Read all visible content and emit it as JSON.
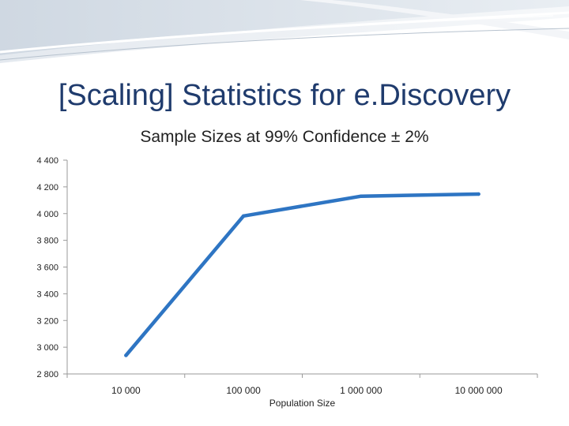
{
  "slide": {
    "title": "[Scaling] Statistics for e.Discovery"
  },
  "chart_data": {
    "type": "line",
    "title": "Sample Sizes at 99% Confidence ± 2%",
    "xlabel": "Population Size",
    "ylabel": "",
    "categories": [
      "10 000",
      "100 000",
      "1 000 000",
      "10 000 000"
    ],
    "x": [
      10000,
      100000,
      1000000,
      10000000
    ],
    "x_scale": "log",
    "series": [
      {
        "values": [
          2939,
          3982,
          4130,
          4146
        ]
      }
    ],
    "ylim": [
      2800,
      4400
    ],
    "yticks": [
      2800,
      3000,
      3200,
      3400,
      3600,
      3800,
      4000,
      4200,
      4400
    ],
    "ytick_labels": [
      "2 800",
      "3 000",
      "3 200",
      "3 400",
      "3 600",
      "3 800",
      "4 000",
      "4 200",
      "4 400"
    ],
    "grid": false,
    "legend": "none",
    "colors": {
      "line": "#2e75c3",
      "axis": "#9a9a9a",
      "text": "#222222"
    }
  }
}
